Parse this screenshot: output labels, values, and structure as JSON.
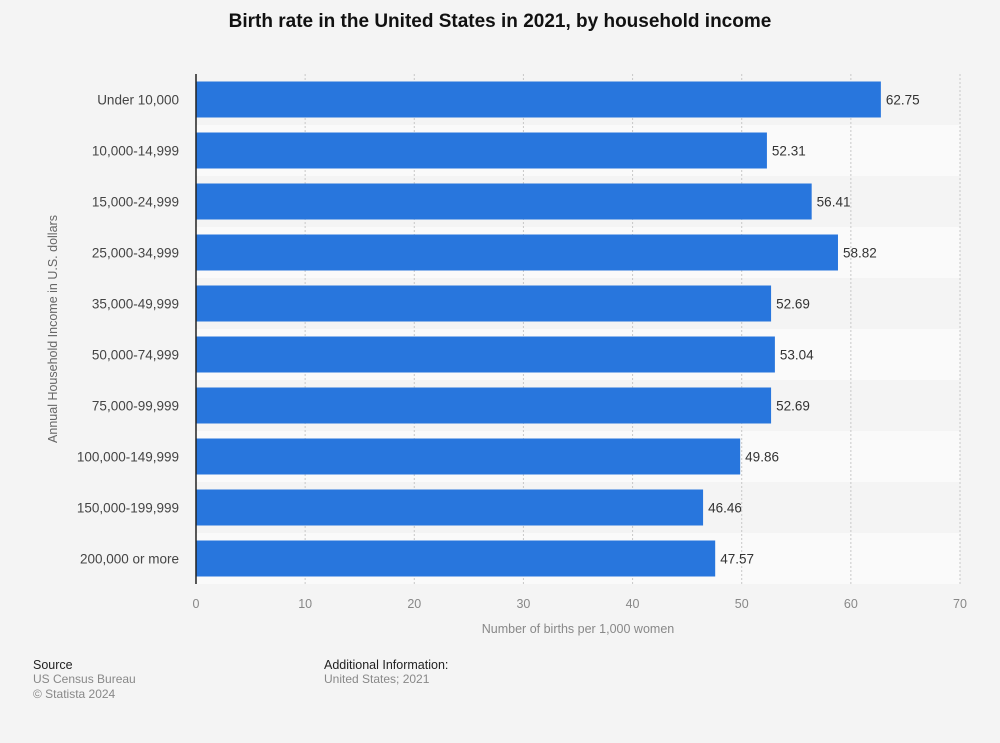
{
  "chart_data": {
    "type": "bar",
    "orientation": "horizontal",
    "title": "Birth rate in the United States in 2021, by household income",
    "xlabel": "Number of births per 1,000 women",
    "ylabel": "Annual Household Income in U.S. dollars",
    "categories": [
      "Under 10,000",
      "10,000-14,999",
      "15,000-24,999",
      "25,000-34,999",
      "35,000-49,999",
      "50,000-74,999",
      "75,000-99,999",
      "100,000-149,999",
      "150,000-199,999",
      "200,000 or more"
    ],
    "values": [
      62.75,
      52.31,
      56.41,
      58.82,
      52.69,
      53.04,
      52.69,
      49.86,
      46.46,
      47.57
    ],
    "value_labels": [
      "62.75",
      "52.31",
      "56.41",
      "58.82",
      "52.69",
      "53.04",
      "52.69",
      "49.86",
      "46.46",
      "47.57"
    ],
    "xlim": [
      0,
      70
    ],
    "xticks": [
      0,
      10,
      20,
      30,
      40,
      50,
      60,
      70
    ],
    "xtick_labels": [
      "0",
      "10",
      "20",
      "30",
      "40",
      "50",
      "60",
      "70"
    ],
    "grid": true,
    "legend": "none",
    "bar_color": "#2876dd"
  },
  "footer": {
    "source_heading": "Source",
    "source_lines": [
      "US Census Bureau",
      "© Statista 2024"
    ],
    "info_heading": "Additional Information:",
    "info_lines": [
      "United States; 2021"
    ]
  }
}
